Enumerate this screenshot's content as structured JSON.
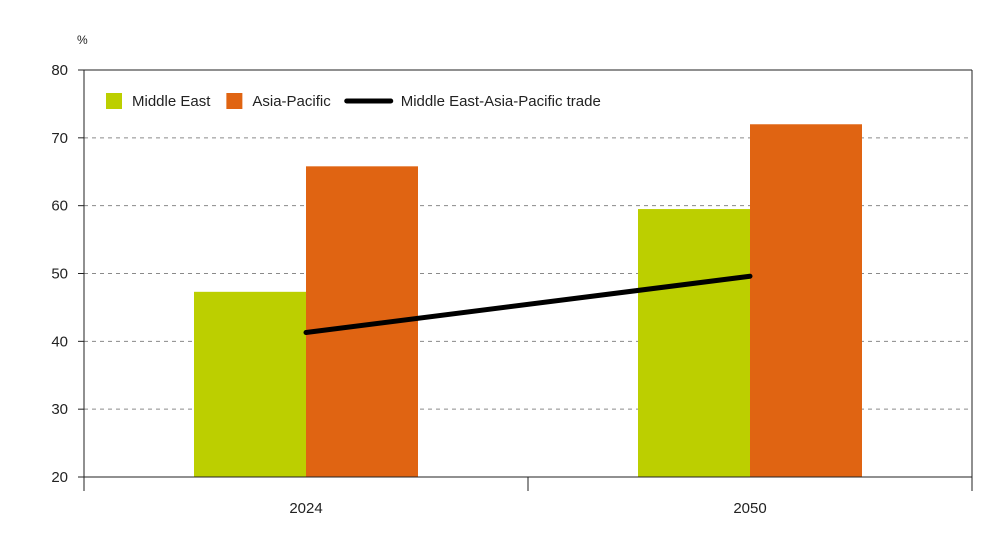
{
  "chart_data": {
    "type": "bar",
    "unit": "%",
    "categories": [
      "2024",
      "2050"
    ],
    "series": [
      {
        "name": "Middle East",
        "kind": "bar",
        "color": "#bccf00",
        "values": [
          47.3,
          59.5
        ]
      },
      {
        "name": "Asia-Pacific",
        "kind": "bar",
        "color": "#e06412",
        "values": [
          65.8,
          72.0
        ]
      },
      {
        "name": "Middle East-Asia-Pacific trade",
        "kind": "line",
        "color": "#000000",
        "values": [
          41.3,
          49.6
        ]
      }
    ],
    "ylim": [
      20,
      80
    ],
    "yticks": [
      20,
      30,
      40,
      50,
      60,
      70,
      80
    ],
    "grid": "horizontal-dashed",
    "legend_position": "top-left"
  }
}
